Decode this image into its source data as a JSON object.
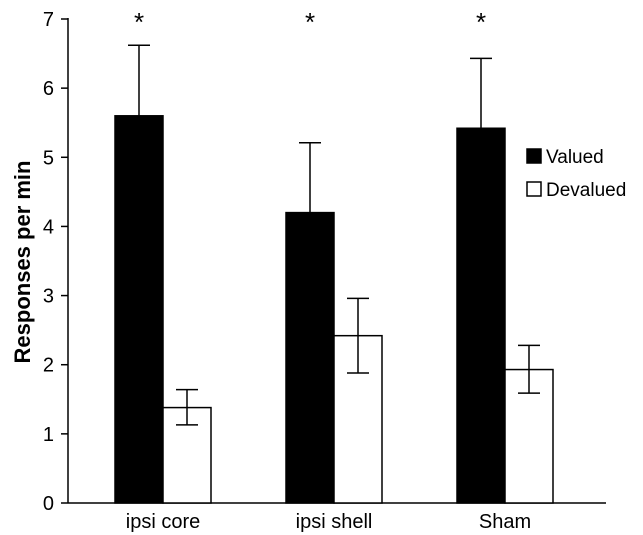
{
  "chart_data": {
    "type": "bar",
    "title": "",
    "xlabel": "",
    "ylabel": "Responses per min",
    "ylim": [
      0,
      7
    ],
    "yticks": [
      "0",
      "1",
      "2",
      "3",
      "4",
      "5",
      "6",
      "7"
    ],
    "categories": [
      "ipsi core",
      "ipsi shell",
      "Sham"
    ],
    "series": [
      {
        "name": "Valued",
        "color": "#000000",
        "values": [
          5.6,
          4.2,
          5.42
        ],
        "error_upper": [
          6.62,
          5.21,
          6.43
        ]
      },
      {
        "name": "Devalued",
        "color": "#ffffff",
        "values": [
          1.38,
          2.42,
          1.93
        ],
        "error_upper": [
          1.64,
          2.96,
          2.28
        ],
        "error_lower": [
          1.13,
          1.88,
          1.59
        ]
      }
    ],
    "annotations": [
      "*",
      "*",
      "*"
    ],
    "grid": false,
    "legend_position": "right"
  }
}
